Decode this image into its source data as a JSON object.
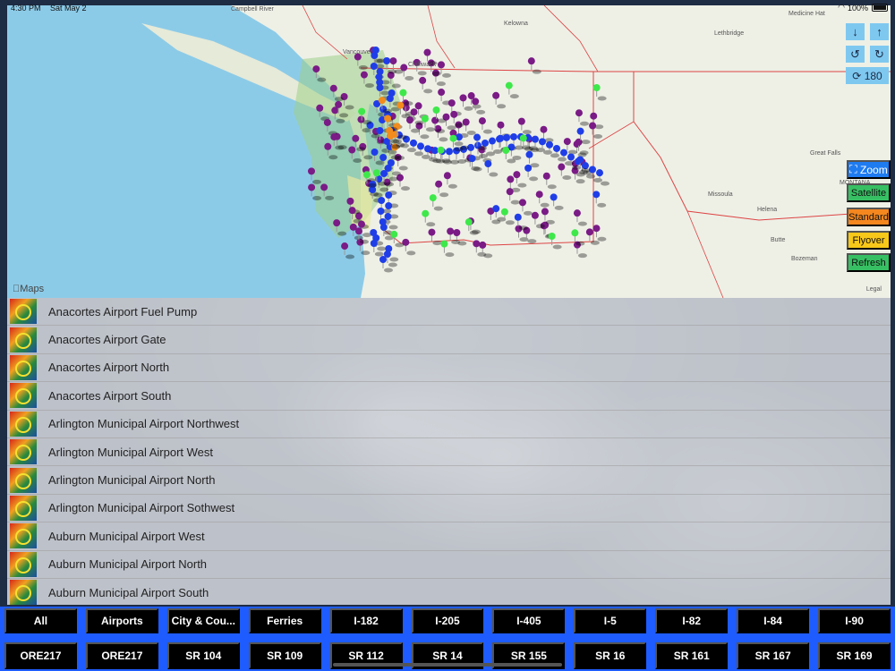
{
  "status_bar": {
    "time": "4:30 PM",
    "date": "Sat May 2",
    "battery": "100%"
  },
  "map": {
    "attribution": "Maps",
    "legal": "Legal",
    "labels": [
      {
        "text": "Campbell River"
      },
      {
        "text": "Kelowna"
      },
      {
        "text": "Vancouver"
      },
      {
        "text": "Chilliwack"
      },
      {
        "text": "Medicine Hat"
      },
      {
        "text": "Lethbridge"
      },
      {
        "text": "Great Falls"
      },
      {
        "text": "MONTANA"
      },
      {
        "text": "Missoula"
      },
      {
        "text": "Helena"
      },
      {
        "text": "Butte"
      },
      {
        "text": "Bozeman"
      }
    ],
    "pin_colors": {
      "purple": "#7a1b86",
      "blue": "#1f3ee8",
      "green": "#3ee84a",
      "orange": "#f28c1c"
    }
  },
  "controls": {
    "down_icon": "arrow-down-icon",
    "up_icon": "arrow-up-icon",
    "rotate_left_icon": "rotate-left-icon",
    "rotate_right_icon": "rotate-right-icon",
    "rotate_label": "180",
    "zoom_label": "Zoom",
    "satellite_label": "Satellite",
    "standard_label": "Standard",
    "flyover_label": "Flyover",
    "refresh_label": "Refresh"
  },
  "list_items": [
    "Anacortes Airport Fuel Pump",
    "Anacortes Airport Gate",
    "Anacortes Airport North",
    "Anacortes Airport South",
    "Arlington Municipal Airport Northwest",
    "Arlington Municipal Airport West",
    "Arlington Municipal Airport North",
    "Arlington Municipal Airport Sothwest",
    "Auburn Municipal Airport West",
    "Auburn Municipal Airport North",
    "Auburn Municipal Airport South"
  ],
  "tabs_row1": [
    "All",
    "Airports",
    "City & Cou...",
    "Ferries",
    "I-182",
    "I-205",
    "I-405",
    "I-5",
    "I-82",
    "I-84",
    "I-90"
  ],
  "tabs_row2": [
    "ORE217",
    "ORE217",
    "SR 104",
    "SR 109",
    "SR 112",
    "SR 14",
    "SR 155",
    "SR 16",
    "SR 161",
    "SR 167",
    "SR 169"
  ]
}
